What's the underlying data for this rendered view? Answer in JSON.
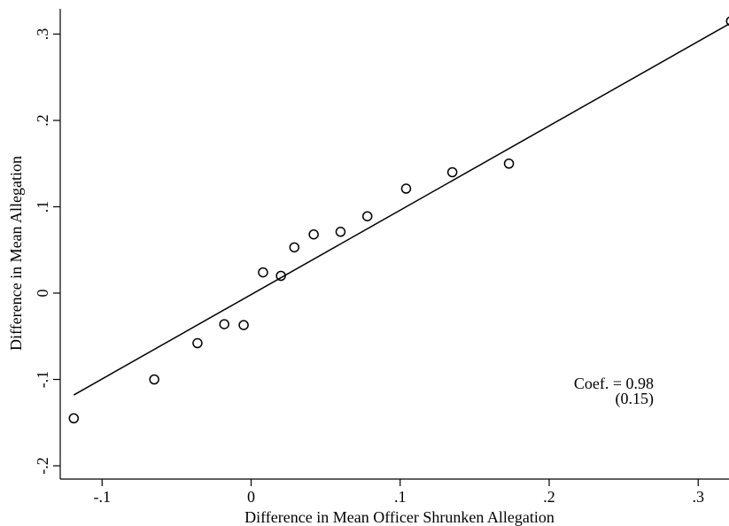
{
  "chart_data": {
    "type": "scatter",
    "xlabel": "Difference in Mean Officer Shrunken Allegation",
    "ylabel": "Difference in Mean Allegation",
    "xlim": [
      -0.12,
      0.32
    ],
    "ylim": [
      -0.2,
      0.3
    ],
    "x_ticks": [
      {
        "value": -0.1,
        "label": "-.1"
      },
      {
        "value": 0,
        "label": "0"
      },
      {
        "value": 0.1,
        "label": ".1"
      },
      {
        "value": 0.2,
        "label": ".2"
      },
      {
        "value": 0.3,
        "label": ".3"
      }
    ],
    "y_ticks": [
      {
        "value": -0.2,
        "label": "-.2"
      },
      {
        "value": -0.1,
        "label": "-.1"
      },
      {
        "value": 0,
        "label": "0"
      },
      {
        "value": 0.1,
        "label": ".1"
      },
      {
        "value": 0.2,
        "label": ".2"
      },
      {
        "value": 0.3,
        "label": ".3"
      }
    ],
    "grid": false,
    "points": [
      {
        "x": -0.119,
        "y": -0.145
      },
      {
        "x": -0.065,
        "y": -0.1
      },
      {
        "x": -0.036,
        "y": -0.058
      },
      {
        "x": -0.018,
        "y": -0.036
      },
      {
        "x": -0.005,
        "y": -0.037
      },
      {
        "x": 0.008,
        "y": 0.024
      },
      {
        "x": 0.02,
        "y": 0.02
      },
      {
        "x": 0.029,
        "y": 0.053
      },
      {
        "x": 0.042,
        "y": 0.068
      },
      {
        "x": 0.06,
        "y": 0.071
      },
      {
        "x": 0.078,
        "y": 0.089
      },
      {
        "x": 0.104,
        "y": 0.121
      },
      {
        "x": 0.135,
        "y": 0.14
      },
      {
        "x": 0.173,
        "y": 0.15
      },
      {
        "x": 0.322,
        "y": 0.315
      }
    ],
    "fit_line": {
      "x": [
        -0.119,
        0.322
      ],
      "y": [
        -0.118,
        0.313
      ]
    },
    "annotation": {
      "line1": "Coef. = 0.98",
      "line2": "(0.15)"
    }
  }
}
